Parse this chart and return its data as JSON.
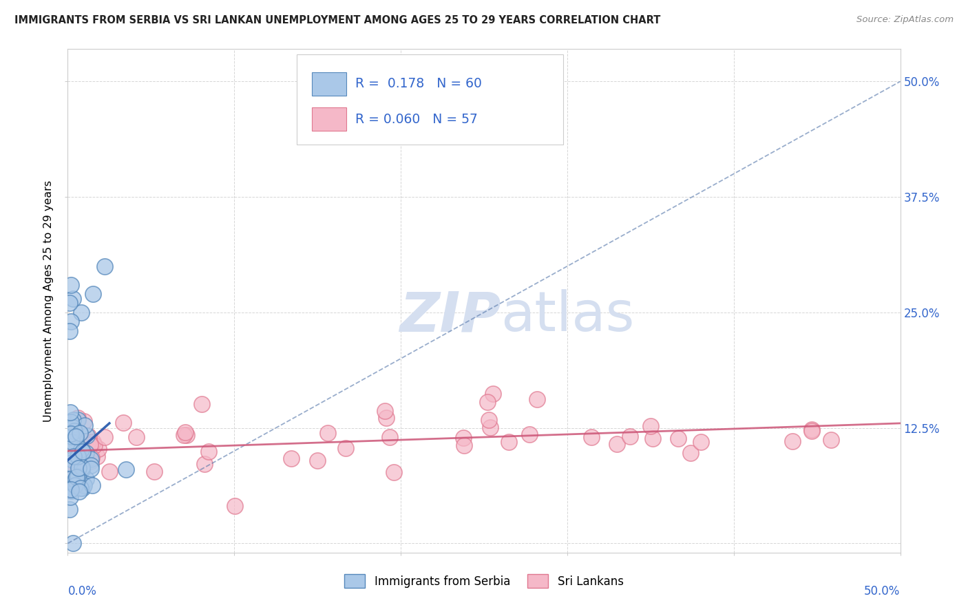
{
  "title": "IMMIGRANTS FROM SERBIA VS SRI LANKAN UNEMPLOYMENT AMONG AGES 25 TO 29 YEARS CORRELATION CHART",
  "source": "Source: ZipAtlas.com",
  "ylabel": "Unemployment Among Ages 25 to 29 years",
  "xlim": [
    0.0,
    0.5
  ],
  "ylim": [
    -0.01,
    0.535
  ],
  "series1_label": "Immigrants from Serbia",
  "series1_color": "#aac8e8",
  "series1_edge_color": "#5588bb",
  "series1_R": 0.178,
  "series1_N": 60,
  "series2_label": "Sri Lankans",
  "series2_color": "#f5b8c8",
  "series2_edge_color": "#e07890",
  "series2_R": 0.06,
  "series2_N": 57,
  "trend1_color": "#5577aa",
  "trend2_color": "#cc5577",
  "watermark_color": "#d5dff0",
  "bg_color": "#ffffff",
  "grid_color": "#cccccc",
  "right_label_color": "#3366cc",
  "title_color": "#222222",
  "source_color": "#888888"
}
